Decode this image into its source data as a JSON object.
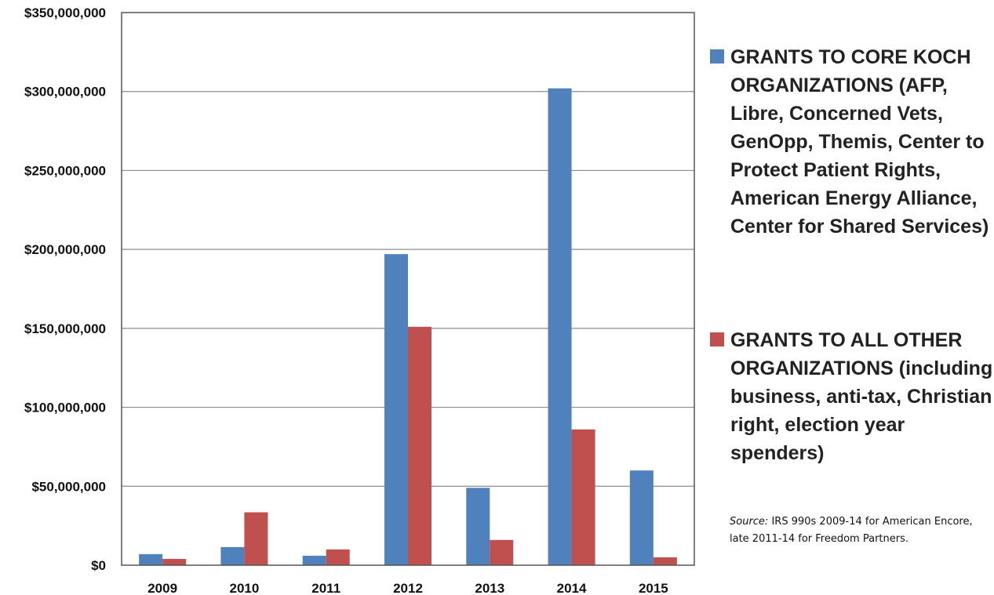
{
  "chart_data": {
    "type": "bar",
    "categories": [
      "2009",
      "2010",
      "2011",
      "2012",
      "2013",
      "2014",
      "2015"
    ],
    "series": [
      {
        "name": "GRANTS TO CORE KOCH ORGANIZATIONS  (AFP, Libre, Concerned Vets, GenOpp, Themis, Center to Protect Patient Rights, American Energy Alliance, Center for Shared Services)",
        "color": "#4f81bd",
        "values": [
          7000000,
          11500000,
          6000000,
          197000000,
          49000000,
          302000000,
          60000000
        ]
      },
      {
        "name": "GRANTS TO ALL OTHER ORGANIZATIONS (including business, anti-tax, Christian right, election year spenders)",
        "color": "#c0504d",
        "values": [
          4000000,
          33500000,
          10000000,
          151000000,
          16000000,
          86000000,
          5000000
        ]
      }
    ],
    "ylim": [
      0,
      350000000
    ],
    "y_ticks": [
      "$0",
      "$50,000,000",
      "$100,000,000",
      "$150,000,000",
      "$200,000,000",
      "$250,000,000",
      "$300,000,000",
      "$350,000,000"
    ],
    "grid": true,
    "legend_position": "right",
    "source": {
      "label": "Source:",
      "text": " IRS 990s 2009-14  for American Encore, late 2011-14 for Freedom Partners."
    }
  }
}
